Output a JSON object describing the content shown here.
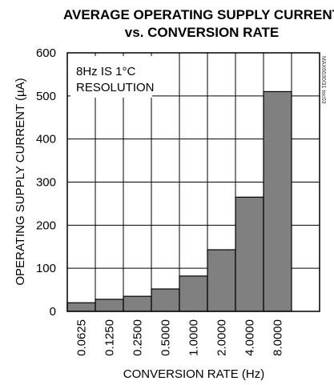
{
  "chart_data": {
    "type": "bar",
    "title_line1": "AVERAGE OPERATING SUPPLY CURRENT",
    "title_line2": "vs. CONVERSION RATE",
    "xlabel": "CONVERSION RATE (Hz)",
    "ylabel": "OPERATING SUPPLY CURRENT (µA)",
    "categories": [
      "0.0625",
      "0.1250",
      "0.2500",
      "0.5000",
      "1.0000",
      "2.0000",
      "4.0000",
      "8.0000"
    ],
    "values": [
      20,
      28,
      35,
      52,
      82,
      143,
      265,
      510
    ],
    "ylim": [
      0,
      600
    ],
    "yticks": [
      "0",
      "100",
      "200",
      "300",
      "400",
      "500",
      "600"
    ],
    "grid": true,
    "annotation_line1": "8Hz IS 1°C",
    "annotation_line2": "RESOLUTION",
    "figure_code": "MAX6630/31 toc03",
    "bar_color": "#808080"
  }
}
